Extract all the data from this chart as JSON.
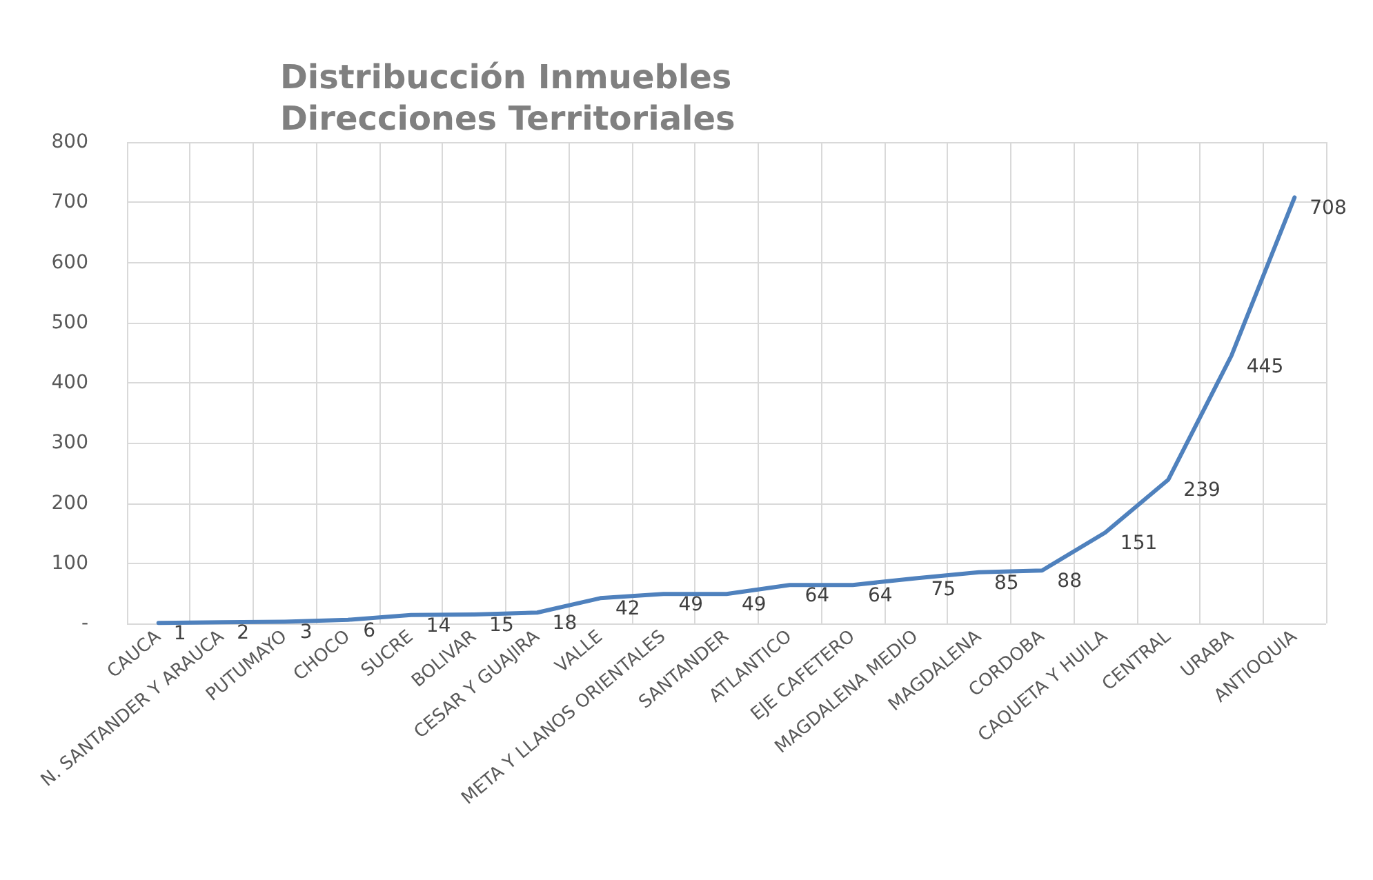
{
  "chart_data": {
    "type": "line",
    "title": "Distribucción Inmuebles\nDirecciones Territoriales",
    "categories": [
      "CAUCA",
      "N. SANTANDER Y ARAUCA",
      "PUTUMAYO",
      "CHOCO",
      "SUCRE",
      "BOLIVAR",
      "CESAR Y GUAJIRA",
      "VALLE",
      "META Y LLANOS ORIENTALES",
      "SANTANDER",
      "ATLANTICO",
      "EJE CAFETERO",
      "MAGDALENA MEDIO",
      "MAGDALENA",
      "CORDOBA",
      "CAQUETA Y HUILA",
      "CENTRAL",
      "URABA",
      "ANTIOQUIA"
    ],
    "series": [
      {
        "color": "#4f81bd",
        "values": [
          1,
          2,
          3,
          6,
          14,
          15,
          18,
          42,
          49,
          49,
          64,
          64,
          75,
          85,
          88,
          151,
          239,
          445,
          708
        ]
      }
    ],
    "ylim": [
      0,
      800
    ],
    "yticks": [
      {
        "value": 0,
        "label": "-"
      },
      100,
      200,
      300,
      400,
      500,
      600,
      700,
      800
    ],
    "grid": true,
    "data_labels": true,
    "marker": "none",
    "line_style": "solid"
  }
}
